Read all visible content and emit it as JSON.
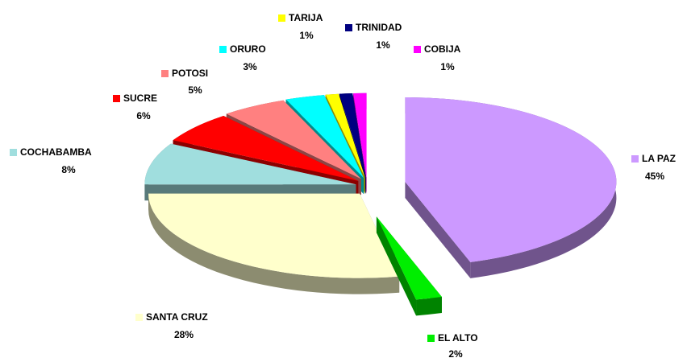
{
  "chart_data": {
    "type": "pie3d",
    "categories": [
      "LA PAZ",
      "EL ALTO",
      "SANTA CRUZ",
      "COCHABAMBA",
      "SUCRE",
      "POTOSI",
      "ORURO",
      "TARIJA",
      "TRINIDAD",
      "COBIJA"
    ],
    "values": [
      45,
      2,
      28,
      8,
      6,
      5,
      3,
      1,
      1,
      1
    ],
    "value_labels": [
      "45%",
      "2%",
      "28%",
      "8%",
      "6%",
      "5%",
      "3%",
      "1%",
      "1%",
      "1%"
    ],
    "colors": [
      "#cc99ff",
      "#00ee00",
      "#ffffcc",
      "#a0dede",
      "#ff0000",
      "#ff8080",
      "#00ffff",
      "#ffff00",
      "#000080",
      "#ff00ff"
    ]
  }
}
